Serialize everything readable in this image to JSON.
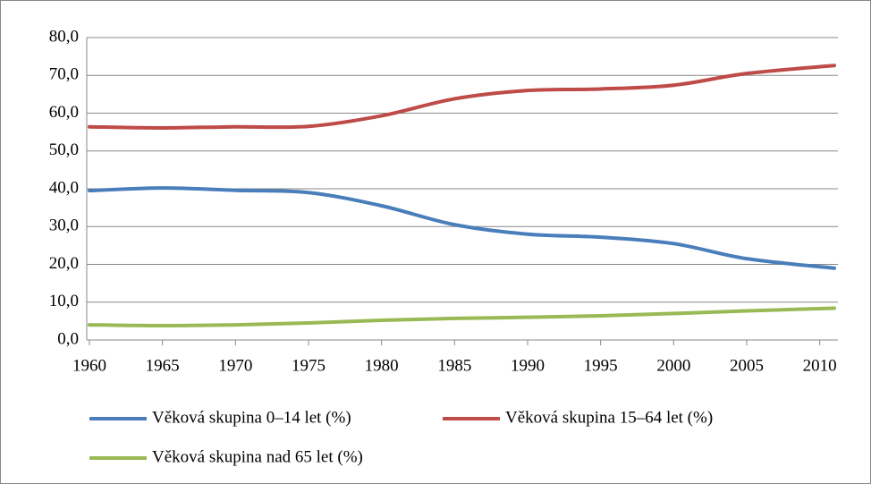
{
  "chart_data": {
    "type": "line",
    "x": [
      1960,
      1965,
      1970,
      1975,
      1980,
      1985,
      1990,
      1995,
      2000,
      2005,
      2011
    ],
    "series": [
      {
        "name": "Věková skupina 0–14 let (%)",
        "color": "#4a7ebb",
        "values": [
          39.5,
          40.2,
          39.6,
          39.0,
          35.5,
          30.5,
          28.0,
          27.2,
          25.5,
          21.5,
          19.0
        ]
      },
      {
        "name": "Věková skupina 15–64 let (%)",
        "color": "#be4b48",
        "values": [
          56.4,
          56.1,
          56.4,
          56.5,
          59.3,
          63.8,
          66.0,
          66.4,
          67.4,
          70.5,
          72.6
        ]
      },
      {
        "name": "Věková skupina nad 65 let (%)",
        "color": "#98b954",
        "values": [
          4.0,
          3.8,
          4.0,
          4.5,
          5.2,
          5.7,
          6.0,
          6.4,
          7.0,
          7.7,
          8.4
        ]
      }
    ],
    "xlim": [
      1960,
      2011
    ],
    "xticks": [
      1960,
      1965,
      1970,
      1975,
      1980,
      1985,
      1990,
      1995,
      2000,
      2005,
      2010
    ],
    "ylim": [
      0,
      80
    ],
    "yticks": [
      {
        "value": 0,
        "label": "0,0"
      },
      {
        "value": 10,
        "label": "10,0"
      },
      {
        "value": 20,
        "label": "20,0"
      },
      {
        "value": 30,
        "label": "30,0"
      },
      {
        "value": 40,
        "label": "40,0"
      },
      {
        "value": 50,
        "label": "50,0"
      },
      {
        "value": 60,
        "label": "60,0"
      },
      {
        "value": 70,
        "label": "70,0"
      },
      {
        "value": 80,
        "label": "80,0"
      }
    ],
    "grid": true
  }
}
